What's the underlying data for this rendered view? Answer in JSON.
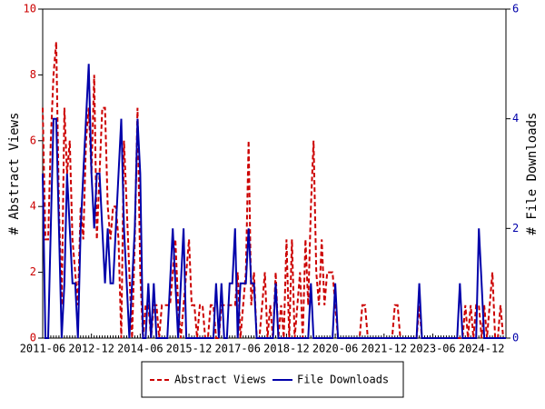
{
  "chart_data": {
    "type": "line",
    "categories": [
      "2011-06",
      null,
      null,
      null,
      null,
      null,
      null,
      null,
      null,
      null,
      null,
      null,
      null,
      null,
      null,
      null,
      null,
      null,
      "2012-12",
      null,
      null,
      null,
      null,
      null,
      null,
      null,
      null,
      null,
      null,
      null,
      null,
      null,
      null,
      null,
      null,
      null,
      "2014-06",
      null,
      null,
      null,
      null,
      null,
      null,
      null,
      null,
      null,
      null,
      null,
      null,
      null,
      null,
      null,
      null,
      null,
      "2015-12",
      null,
      null,
      null,
      null,
      null,
      null,
      null,
      null,
      null,
      null,
      null,
      null,
      null,
      null,
      null,
      null,
      null,
      "2017-06",
      null,
      null,
      null,
      null,
      null,
      null,
      null,
      null,
      null,
      null,
      null,
      null,
      null,
      null,
      null,
      null,
      null,
      "2018-12",
      null,
      null,
      null,
      null,
      null,
      null,
      null,
      null,
      null,
      null,
      null,
      null,
      null,
      null,
      null,
      null,
      null,
      "2020-06",
      null,
      null,
      null,
      null,
      null,
      null,
      null,
      null,
      null,
      null,
      null,
      null,
      null,
      null,
      null,
      null,
      null,
      "2021-12",
      null,
      null,
      null,
      null,
      null,
      null,
      null,
      null,
      null,
      null,
      null,
      null,
      null,
      null,
      null,
      null,
      null,
      "2023-06",
      null,
      null,
      null,
      null,
      null,
      null,
      null,
      null,
      null,
      null,
      null,
      null,
      null,
      null,
      null,
      null,
      null,
      "2024-12",
      null,
      null,
      null,
      null,
      null,
      null,
      null,
      null,
      null
    ],
    "series": [
      {
        "name": "Abstract Views",
        "color": "#cc0000",
        "dash": true,
        "axis": "y",
        "values": [
          7,
          3,
          3,
          6,
          8,
          9,
          4,
          1,
          7,
          5,
          6,
          3,
          2,
          1,
          4,
          3,
          6,
          7,
          5,
          8,
          3,
          5,
          7,
          7,
          4,
          3,
          4,
          4,
          3,
          0,
          6,
          4,
          2,
          0,
          3,
          7,
          2,
          0,
          1,
          1,
          0,
          1,
          1,
          0,
          1,
          1,
          1,
          1,
          2,
          3,
          1,
          0,
          1,
          2,
          3,
          1,
          1,
          0,
          1,
          1,
          0,
          0,
          1,
          1,
          0,
          0,
          1,
          1,
          1,
          1,
          1,
          1,
          2,
          0,
          1,
          2,
          6,
          1,
          2,
          0,
          0,
          1,
          2,
          0,
          1,
          0,
          2,
          0,
          1,
          0,
          3,
          0,
          3,
          0,
          1,
          2,
          0,
          3,
          1,
          4,
          6,
          2,
          1,
          3,
          1,
          2,
          2,
          2,
          1,
          0,
          0,
          0,
          0,
          0,
          0,
          0,
          0,
          0,
          1,
          1,
          0,
          0,
          0,
          0,
          0,
          0,
          0,
          0,
          0,
          0,
          1,
          1,
          0,
          0,
          0,
          0,
          0,
          0,
          0,
          1,
          0,
          0,
          0,
          0,
          0,
          0,
          0,
          0,
          0,
          0,
          0,
          0,
          0,
          0,
          0,
          0,
          1,
          0,
          1,
          0,
          1,
          1,
          0,
          1,
          0,
          1,
          2,
          0,
          0,
          1,
          0,
          0
        ]
      },
      {
        "name": "File Downloads",
        "color": "#0000aa",
        "dash": false,
        "axis": "y2",
        "values": [
          3,
          0,
          0,
          2,
          4,
          4,
          2,
          0,
          1,
          3,
          2,
          1,
          1,
          0,
          2,
          3,
          4,
          5,
          3,
          2,
          3,
          3,
          2,
          1,
          2,
          1,
          1,
          2,
          3,
          4,
          2,
          1,
          0,
          1,
          2,
          4,
          3,
          0,
          0,
          1,
          0,
          1,
          0,
          0,
          0,
          0,
          0,
          1,
          2,
          1,
          0,
          1,
          2,
          0,
          0,
          0,
          0,
          0,
          0,
          0,
          0,
          0,
          0,
          0,
          1,
          0,
          1,
          0,
          0,
          1,
          1,
          2,
          0,
          1,
          1,
          1,
          2,
          1,
          1,
          0,
          0,
          0,
          0,
          0,
          0,
          0,
          1,
          0,
          0,
          0,
          0,
          0,
          0,
          0,
          0,
          0,
          0,
          0,
          0,
          1,
          0,
          0,
          0,
          0,
          0,
          0,
          0,
          0,
          1,
          0,
          0,
          0,
          0,
          0,
          0,
          0,
          0,
          0,
          0,
          0,
          0,
          0,
          0,
          0,
          0,
          0,
          0,
          0,
          0,
          0,
          0,
          0,
          0,
          0,
          0,
          0,
          0,
          0,
          0,
          1,
          0,
          0,
          0,
          0,
          0,
          0,
          0,
          0,
          0,
          0,
          0,
          0,
          0,
          0,
          1,
          0,
          0,
          0,
          0,
          0,
          0,
          2,
          1,
          0,
          0,
          0,
          0,
          0,
          0,
          0,
          0,
          0
        ]
      }
    ],
    "ylabel": "# Abstract Views",
    "y2label": "# File Downloads",
    "ylim": [
      0,
      10
    ],
    "yticks": [
      0,
      2,
      4,
      6,
      8,
      10
    ],
    "y2lim": [
      0,
      6
    ],
    "y2ticks": [
      0,
      2,
      4,
      6
    ],
    "legend": "bottom"
  }
}
